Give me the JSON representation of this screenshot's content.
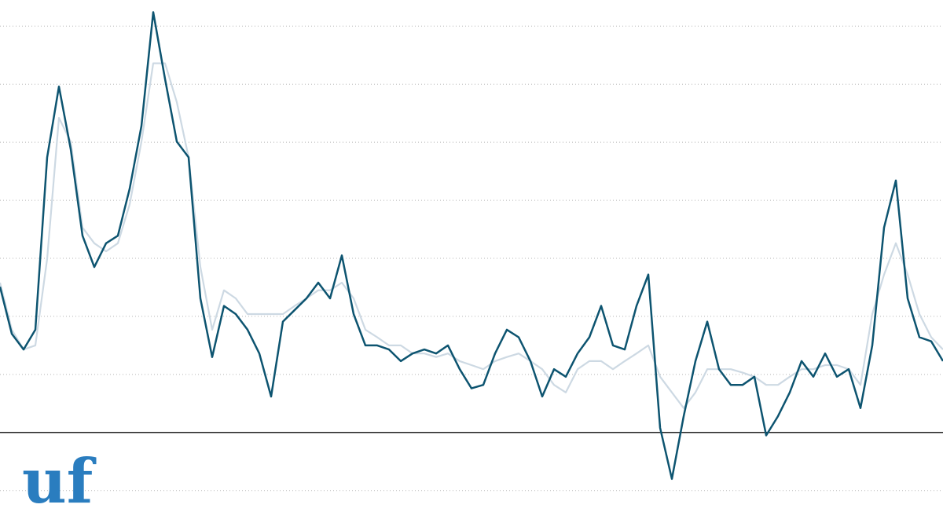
{
  "chart_data": {
    "type": "line",
    "categories": [
      null,
      null,
      null,
      null,
      null,
      null,
      null,
      null,
      null,
      null,
      null,
      null,
      null,
      null,
      null,
      null,
      null,
      null,
      null,
      null,
      null,
      null,
      null,
      null,
      null,
      null,
      null,
      null,
      null,
      null,
      null,
      null,
      null,
      null,
      null,
      null,
      null,
      null,
      null,
      null,
      null,
      null,
      null,
      null,
      null,
      null,
      null,
      null,
      null,
      null,
      null,
      null,
      null,
      null,
      null,
      null,
      null,
      null,
      null,
      null,
      null,
      null,
      null,
      null,
      null,
      null,
      null,
      null,
      null,
      null,
      null,
      null,
      null,
      null,
      null,
      null,
      null,
      null,
      null,
      null,
      null
    ],
    "series": [
      {
        "color": "#cdd9e3",
        "values": [
          2.58,
          1.77,
          1.43,
          1.5,
          2.99,
          5.42,
          5.01,
          3.53,
          3.26,
          3.12,
          3.26,
          3.93,
          5.01,
          6.36,
          6.36,
          5.69,
          4.74,
          2.85,
          1.77,
          2.45,
          2.31,
          2.04,
          2.04,
          2.04,
          2.04,
          2.18,
          2.31,
          2.45,
          2.45,
          2.58,
          2.31,
          1.77,
          1.64,
          1.5,
          1.5,
          1.36,
          1.36,
          1.3,
          1.36,
          1.23,
          1.16,
          1.09,
          1.23,
          1.3,
          1.36,
          1.23,
          1.09,
          0.82,
          0.69,
          1.09,
          1.23,
          1.23,
          1.09,
          1.23,
          1.36,
          1.5,
          0.96,
          0.69,
          0.42,
          0.69,
          1.09,
          1.09,
          1.09,
          1.03,
          0.96,
          0.82,
          0.82,
          0.96,
          1.09,
          1.09,
          1.16,
          1.16,
          1.09,
          0.82,
          2.04,
          2.72,
          3.26,
          2.72,
          2.04,
          1.64,
          1.43
        ]
      },
      {
        "color": "#0d5470",
        "values": [
          2.51,
          1.7,
          1.43,
          1.77,
          4.74,
          5.96,
          4.88,
          3.39,
          2.85,
          3.26,
          3.39,
          4.2,
          5.28,
          7.24,
          6.09,
          5.01,
          4.74,
          2.31,
          1.3,
          2.18,
          2.04,
          1.77,
          1.36,
          0.62,
          1.91,
          2.11,
          2.31,
          2.58,
          2.31,
          3.05,
          2.04,
          1.5,
          1.5,
          1.43,
          1.23,
          1.36,
          1.43,
          1.36,
          1.5,
          1.09,
          0.76,
          0.82,
          1.36,
          1.77,
          1.64,
          1.23,
          0.62,
          1.09,
          0.96,
          1.36,
          1.64,
          2.18,
          1.5,
          1.43,
          2.18,
          2.72,
          0.08,
          -0.8,
          0.28,
          1.23,
          1.91,
          1.09,
          0.82,
          0.82,
          0.96,
          -0.05,
          0.28,
          0.69,
          1.23,
          0.96,
          1.36,
          0.96,
          1.09,
          0.42,
          1.5,
          3.53,
          4.34,
          2.31,
          1.64,
          1.57,
          1.23
        ]
      }
    ],
    "ylim": [
      -1.68,
      7.45
    ],
    "yticks": [
      -1,
      0,
      1,
      2,
      3,
      4,
      5,
      6,
      7
    ],
    "grid": true
  },
  "logo": "uf"
}
